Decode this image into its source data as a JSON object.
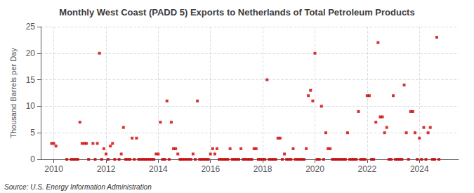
{
  "chart_data": {
    "type": "scatter",
    "title": "Monthly West Coast (PADD 5) Exports to Netherlands of Total Petroleum Products",
    "ylabel": "Thousand Barrels per Day",
    "source": "Source: U.S. Energy Information Administration",
    "color": "#cc0000",
    "marker": "square",
    "grid": true,
    "xlim": [
      2009.5,
      2025.5
    ],
    "xticks": [
      2010,
      2012,
      2014,
      2016,
      2018,
      2020,
      2022,
      2024
    ],
    "ylim": [
      0,
      25
    ],
    "yticks": [
      0,
      5,
      10,
      15,
      20,
      25
    ],
    "x": [
      2009.917,
      2010.0,
      2010.083,
      2010.5,
      2010.667,
      2010.75,
      2010.833,
      2010.917,
      2011.0,
      2011.083,
      2011.167,
      2011.25,
      2011.333,
      2011.5,
      2011.583,
      2011.667,
      2011.75,
      2011.833,
      2011.917,
      2012.0,
      2012.083,
      2012.167,
      2012.25,
      2012.333,
      2012.5,
      2012.583,
      2012.667,
      2012.75,
      2012.833,
      2012.917,
      2013.0,
      2013.083,
      2013.167,
      2013.25,
      2013.333,
      2013.417,
      2013.5,
      2013.583,
      2013.667,
      2013.75,
      2013.833,
      2013.917,
      2014.0,
      2014.083,
      2014.167,
      2014.25,
      2014.333,
      2014.417,
      2014.5,
      2014.583,
      2014.667,
      2014.75,
      2014.833,
      2014.917,
      2015.0,
      2015.083,
      2015.167,
      2015.25,
      2015.333,
      2015.417,
      2015.5,
      2015.583,
      2015.667,
      2015.75,
      2015.833,
      2015.917,
      2016.0,
      2016.083,
      2016.167,
      2016.25,
      2016.333,
      2016.417,
      2016.5,
      2016.583,
      2016.667,
      2016.75,
      2016.833,
      2016.917,
      2017.0,
      2017.083,
      2017.167,
      2017.25,
      2017.333,
      2017.417,
      2017.5,
      2017.583,
      2017.667,
      2017.75,
      2017.833,
      2017.917,
      2018.0,
      2018.083,
      2018.167,
      2018.25,
      2018.333,
      2018.417,
      2018.5,
      2018.583,
      2018.667,
      2018.75,
      2018.833,
      2018.917,
      2019.0,
      2019.083,
      2019.167,
      2019.25,
      2019.333,
      2019.417,
      2019.5,
      2019.583,
      2019.667,
      2019.75,
      2019.833,
      2019.917,
      2020.0,
      2020.083,
      2020.167,
      2020.25,
      2020.333,
      2020.417,
      2020.5,
      2020.583,
      2020.667,
      2020.75,
      2020.833,
      2020.917,
      2021.0,
      2021.083,
      2021.167,
      2021.25,
      2021.333,
      2021.417,
      2021.5,
      2021.583,
      2021.667,
      2021.75,
      2021.833,
      2021.917,
      2022.0,
      2022.083,
      2022.167,
      2022.25,
      2022.333,
      2022.417,
      2022.5,
      2022.583,
      2022.667,
      2022.75,
      2022.833,
      2022.917,
      2023.0,
      2023.083,
      2023.167,
      2023.25,
      2023.333,
      2023.417,
      2023.5,
      2023.583,
      2023.667,
      2023.75,
      2023.833,
      2023.917,
      2024.0,
      2024.083,
      2024.167,
      2024.25,
      2024.333,
      2024.417,
      2024.5,
      2024.583,
      2024.667,
      2024.75
    ],
    "values": [
      3.0,
      3.0,
      2.5,
      0.0,
      0.0,
      0.0,
      0.0,
      0.0,
      7.0,
      3.0,
      3.0,
      3.0,
      0.0,
      3.0,
      0.0,
      3.0,
      20.0,
      0.0,
      2.0,
      1.0,
      0.0,
      2.5,
      3.0,
      0.0,
      0.0,
      1.0,
      6.0,
      0.0,
      0.0,
      0.0,
      4.0,
      0.0,
      4.0,
      0.0,
      0.0,
      0.0,
      0.0,
      0.0,
      0.0,
      0.0,
      0.0,
      1.0,
      1.0,
      7.0,
      0.0,
      0.0,
      11.0,
      0.0,
      7.0,
      2.0,
      2.0,
      1.0,
      0.0,
      0.0,
      0.0,
      0.0,
      0.0,
      0.0,
      1.0,
      0.0,
      11.0,
      0.0,
      0.0,
      0.0,
      0.0,
      0.0,
      1.0,
      2.0,
      1.0,
      2.0,
      0.0,
      0.0,
      0.0,
      0.0,
      0.0,
      2.0,
      0.0,
      0.0,
      0.0,
      0.0,
      2.0,
      0.0,
      0.0,
      0.0,
      0.0,
      0.0,
      2.0,
      2.0,
      0.0,
      0.0,
      0.0,
      0.0,
      15.0,
      0.0,
      0.0,
      0.0,
      0.0,
      4.0,
      4.0,
      0.0,
      1.0,
      0.0,
      0.0,
      0.0,
      2.0,
      0.0,
      0.0,
      0.0,
      0.0,
      0.0,
      2.0,
      12.0,
      13.0,
      11.0,
      20.0,
      0.0,
      0.0,
      10.0,
      0.0,
      5.0,
      2.0,
      2.0,
      0.0,
      0.0,
      0.0,
      0.0,
      0.0,
      0.0,
      0.0,
      5.0,
      0.0,
      0.0,
      0.0,
      0.0,
      9.0,
      0.0,
      0.0,
      0.0,
      12.0,
      12.0,
      0.0,
      0.0,
      7.0,
      22.0,
      8.0,
      8.0,
      5.0,
      6.0,
      0.0,
      0.0,
      12.0,
      0.0,
      0.0,
      0.0,
      0.0,
      14.0,
      5.0,
      0.0,
      9.0,
      9.0,
      5.0,
      0.0,
      4.0,
      0.0,
      6.0,
      0.0,
      5.0,
      6.0,
      0.0,
      0.0,
      23.0,
      0.0
    ]
  }
}
